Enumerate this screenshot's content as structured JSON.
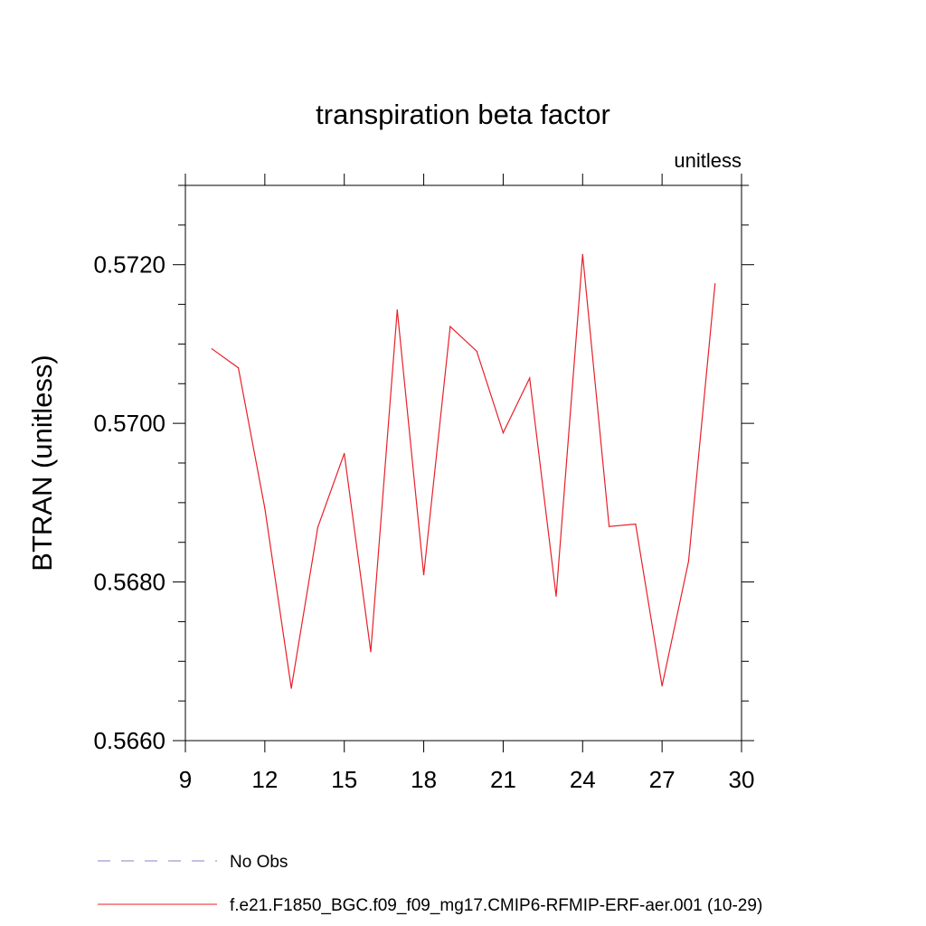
{
  "chart_data": {
    "type": "line",
    "title": "transpiration beta factor",
    "subtitle_right": "unitless",
    "xlabel": "",
    "ylabel": "BTRAN  (unitless)",
    "xlim": [
      9,
      30
    ],
    "ylim": [
      0.566,
      0.573
    ],
    "x_ticks": [
      9,
      12,
      15,
      18,
      21,
      24,
      27,
      30
    ],
    "x_tick_labels": [
      "9",
      "12",
      "15",
      "18",
      "21",
      "24",
      "27",
      "30"
    ],
    "y_ticks": [
      0.566,
      0.568,
      0.57,
      0.572
    ],
    "y_tick_labels": [
      "0.5660",
      "0.5680",
      "0.5700",
      "0.5720"
    ],
    "grid": false,
    "legend_position": "bottom",
    "series": [
      {
        "name": "f.e21.F1850_BGC.f09_f09_mg17.CMIP6-RFMIP-ERF-aer.001 (10-29)",
        "color": "#e8202a",
        "line_style": "solid",
        "x": [
          10,
          11,
          12,
          13,
          14,
          15,
          16,
          17,
          18,
          19,
          20,
          21,
          22,
          23,
          24,
          25,
          26,
          27,
          28,
          29
        ],
        "y": [
          0.57094,
          0.5707,
          0.56893,
          0.56666,
          0.56869,
          0.56962,
          0.56712,
          0.57143,
          0.56809,
          0.57122,
          0.57091,
          0.56988,
          0.57057,
          0.56782,
          0.57213,
          0.5687,
          0.56873,
          0.56669,
          0.56826,
          0.57176
        ]
      }
    ],
    "legend": [
      {
        "label": "No Obs",
        "color": "#8a7fc4",
        "line_style": "dashed"
      },
      {
        "label": "f.e21.F1850_BGC.f09_f09_mg17.CMIP6-RFMIP-ERF-aer.001 (10-29)",
        "color": "#e8202a",
        "line_style": "solid"
      }
    ]
  }
}
